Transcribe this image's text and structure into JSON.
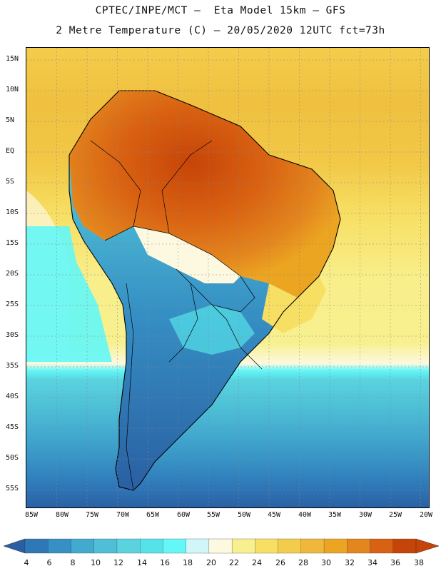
{
  "title": {
    "line1": "CPTEC/INPE/MCT –  Eta Model 15km – GFS",
    "line2": "2 Metre Temperature (C) – 20/05/2020 12UTC fct=73h"
  },
  "lat_labels": [
    "15N",
    "10N",
    "5N",
    "EQ",
    "5S",
    "10S",
    "15S",
    "20S",
    "25S",
    "30S",
    "35S",
    "40S",
    "45S",
    "50S",
    "55S"
  ],
  "lon_labels": [
    "85W",
    "80W",
    "75W",
    "70W",
    "65W",
    "60W",
    "55W",
    "50W",
    "45W",
    "40W",
    "35W",
    "30W",
    "25W",
    "20W"
  ],
  "colorbar": {
    "labels": [
      "4",
      "6",
      "8",
      "10",
      "12",
      "14",
      "16",
      "18",
      "20",
      "22",
      "24",
      "26",
      "28",
      "30",
      "32",
      "34",
      "36",
      "38"
    ],
    "colors": [
      "#2a5fa3",
      "#2f78b8",
      "#3690c4",
      "#42a9cf",
      "#4ebfd6",
      "#5ad3df",
      "#55e3ea",
      "#63f7f7",
      "#d0f6f8",
      "#fdf8e0",
      "#f8f08f",
      "#f7df63",
      "#f4cc4b",
      "#f0b83b",
      "#eca521",
      "#e3861e",
      "#d96212",
      "#c64408"
    ]
  },
  "chart_data": {
    "type": "heatmap",
    "title": "2 Metre Temperature (C)",
    "model": "Eta Model 15km – GFS",
    "run": "20/05/2020 12UTC",
    "forecast": "fct=73h",
    "units": "C",
    "lat_range": [
      -58,
      17
    ],
    "lon_range": [
      -86,
      -20
    ],
    "scale_min": 4,
    "scale_max": 38,
    "scale_step": 2
  }
}
